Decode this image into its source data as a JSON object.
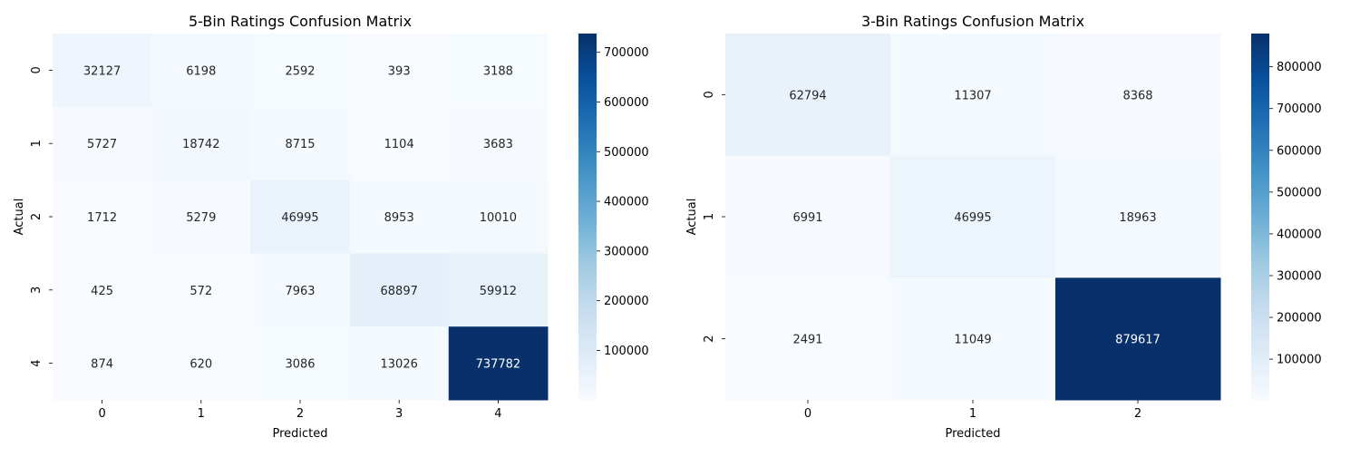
{
  "chart_data": [
    {
      "type": "heatmap",
      "title": "5-Bin Ratings Confusion Matrix",
      "xlabel": "Predicted",
      "ylabel": "Actual",
      "x_categories": [
        "0",
        "1",
        "2",
        "3",
        "4"
      ],
      "y_categories": [
        "0",
        "1",
        "2",
        "3",
        "4"
      ],
      "values": [
        [
          32127,
          6198,
          2592,
          393,
          3188
        ],
        [
          5727,
          18742,
          8715,
          1104,
          3683
        ],
        [
          1712,
          5279,
          46995,
          8953,
          10010
        ],
        [
          425,
          572,
          7963,
          68897,
          59912
        ],
        [
          874,
          620,
          3086,
          13026,
          737782
        ]
      ],
      "colormap": "Blues",
      "color_range": [
        393,
        737782
      ],
      "colorbar_ticks": [
        100000,
        200000,
        300000,
        400000,
        500000,
        600000,
        700000
      ]
    },
    {
      "type": "heatmap",
      "title": "3-Bin Ratings Confusion Matrix",
      "xlabel": "Predicted",
      "ylabel": "Actual",
      "x_categories": [
        "0",
        "1",
        "2"
      ],
      "y_categories": [
        "0",
        "1",
        "2"
      ],
      "values": [
        [
          62794,
          11307,
          8368
        ],
        [
          6991,
          46995,
          18963
        ],
        [
          2491,
          11049,
          879617
        ]
      ],
      "colormap": "Blues",
      "color_range": [
        2491,
        879617
      ],
      "colorbar_ticks": [
        100000,
        200000,
        300000,
        400000,
        500000,
        600000,
        700000,
        800000
      ]
    }
  ]
}
